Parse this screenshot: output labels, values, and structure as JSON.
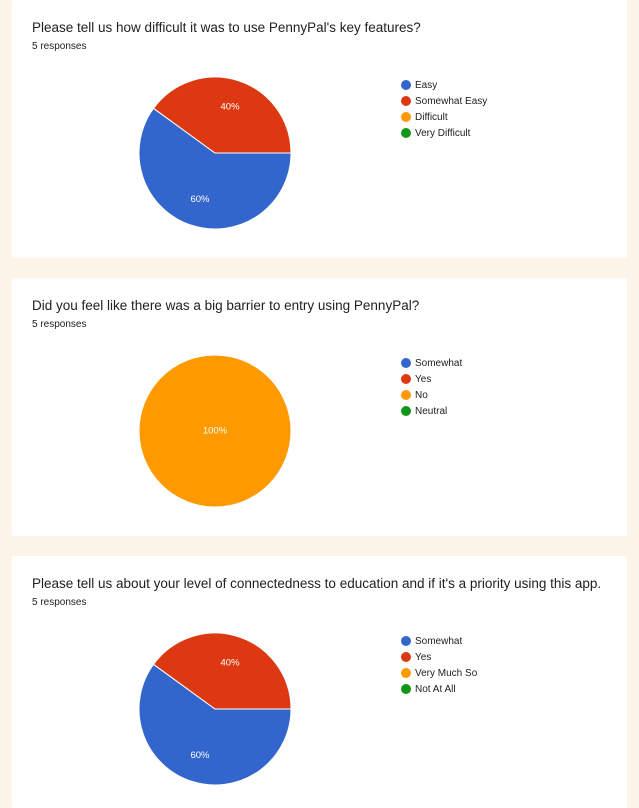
{
  "chart_data": [
    {
      "type": "pie",
      "title": "Please tell us how difficult it was to use PennyPal's key features?",
      "subtitle": "5 responses",
      "categories": [
        "Easy",
        "Somewhat Easy",
        "Difficult",
        "Very Difficult"
      ],
      "values": [
        60,
        40,
        0,
        0
      ],
      "labels": [
        "60%",
        "40%",
        "",
        ""
      ],
      "colors": [
        "#3366cc",
        "#dc3912",
        "#ff9900",
        "#109618"
      ],
      "legend_position": "right"
    },
    {
      "type": "pie",
      "title": "Did you feel like there was a big barrier to entry using PennyPal?",
      "subtitle": "5 responses",
      "categories": [
        "Somewhat",
        "Yes",
        "No",
        "Neutral"
      ],
      "values": [
        0,
        0,
        100,
        0
      ],
      "labels": [
        "",
        "",
        "100%",
        ""
      ],
      "colors": [
        "#3366cc",
        "#dc3912",
        "#ff9900",
        "#109618"
      ],
      "legend_position": "right"
    },
    {
      "type": "pie",
      "title": "Please tell us about your level of connectedness to education and if it's a priority using this app.",
      "subtitle": "5 responses",
      "categories": [
        "Somewhat",
        "Yes",
        "Very Much So",
        "Not At All"
      ],
      "values": [
        60,
        40,
        0,
        0
      ],
      "labels": [
        "60%",
        "40%",
        "",
        ""
      ],
      "colors": [
        "#3366cc",
        "#dc3912",
        "#ff9900",
        "#109618"
      ],
      "legend_position": "right"
    }
  ]
}
